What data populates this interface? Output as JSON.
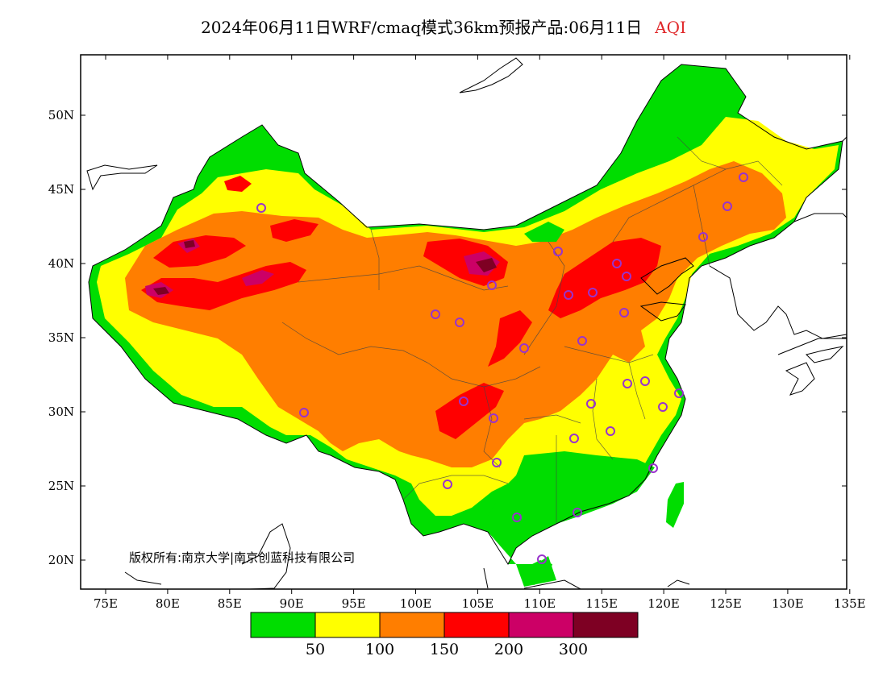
{
  "title": {
    "main": "2024年06月11日WRF/cmaq模式36km预报产品:06月11日",
    "variable": "AQI"
  },
  "copyright": "版权所有:南京大学|南京创蓝科技有限公司",
  "axes": {
    "lon_ticks": [
      "75E",
      "80E",
      "85E",
      "90E",
      "95E",
      "100E",
      "105E",
      "110E",
      "115E",
      "120E",
      "125E",
      "130E",
      "135E"
    ],
    "lat_ticks": [
      "20N",
      "25N",
      "30N",
      "35N",
      "40N",
      "45N",
      "50N"
    ]
  },
  "legend": {
    "colors": [
      "#00dd00",
      "#ffff00",
      "#ff7e00",
      "#ff0000",
      "#cc0066",
      "#7e0023"
    ],
    "labels": [
      "50",
      "100",
      "150",
      "200",
      "300"
    ]
  },
  "icons": {
    "city": "city-marker-icon"
  },
  "colors": {
    "city_marker": "#9933cc",
    "coastline": "#000000"
  }
}
